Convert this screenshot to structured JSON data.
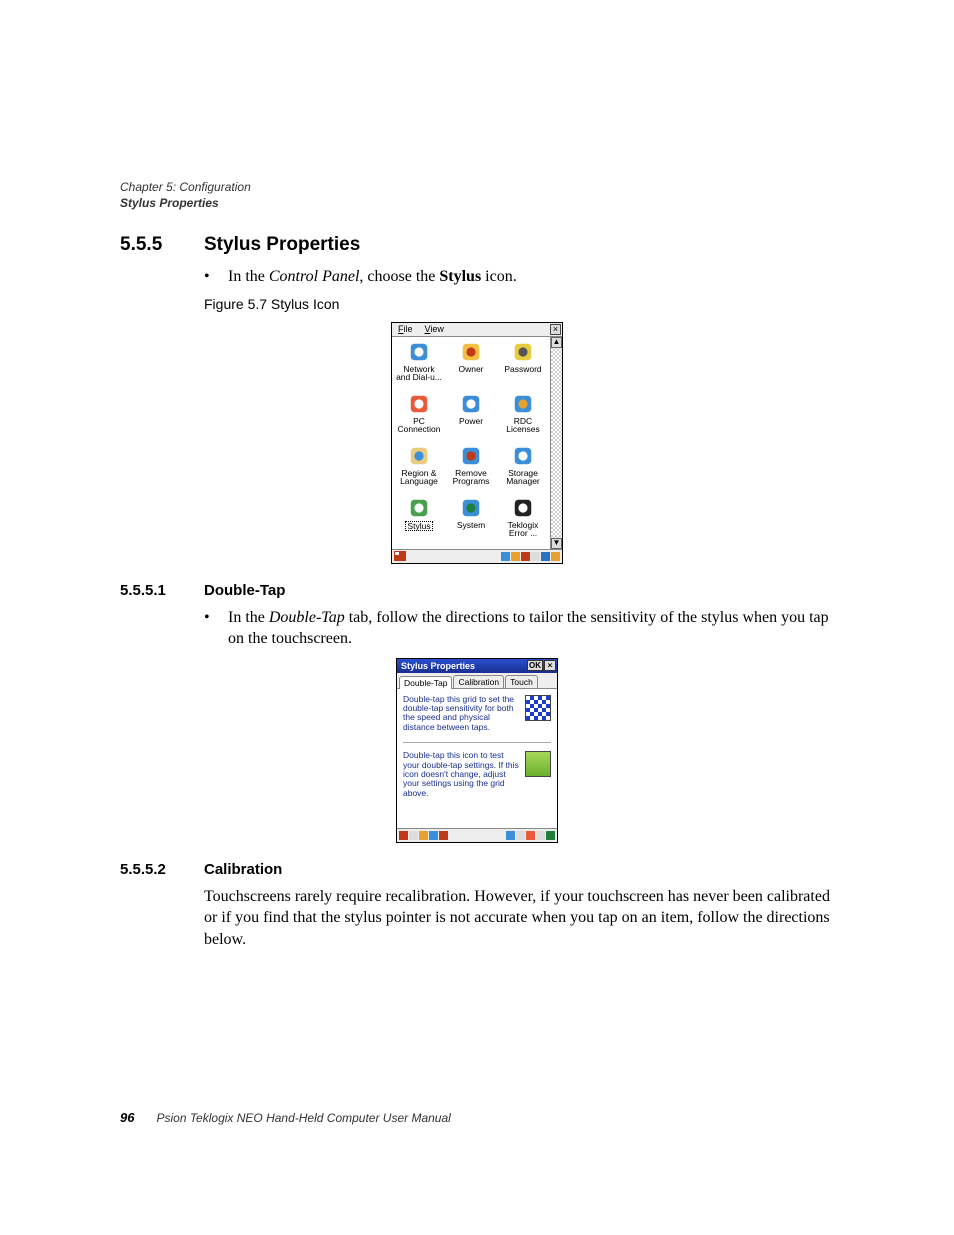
{
  "header": {
    "chapter": "Chapter 5: Configuration",
    "section": "Stylus Properties"
  },
  "section_5_5_5": {
    "num": "5.5.5",
    "title": "Stylus Properties",
    "bullet_prefix": "In the ",
    "bullet_em": "Control Panel",
    "bullet_mid": ", choose the ",
    "bullet_strong": "Stylus",
    "bullet_suffix": " icon.",
    "figure_caption": "Figure 5.7  Stylus Icon"
  },
  "cp": {
    "menu_file": "File",
    "menu_view": "View",
    "close": "×",
    "scroll_up": "▲",
    "scroll_down": "▼",
    "items": [
      {
        "label": "Network\nand Dial-u...",
        "icon_bg": "#3a8fd8",
        "icon_fg": "#fff"
      },
      {
        "label": "Owner",
        "icon_bg": "#f4c040",
        "icon_fg": "#c03a1a"
      },
      {
        "label": "Password",
        "icon_bg": "#e8cc40",
        "icon_fg": "#555"
      },
      {
        "label": "PC\nConnection",
        "icon_bg": "#e85a3a",
        "icon_fg": "#fff"
      },
      {
        "label": "Power",
        "icon_bg": "#3a8fd8",
        "icon_fg": "#fff"
      },
      {
        "label": "RDC\nLicenses",
        "icon_bg": "#3a8fd8",
        "icon_fg": "#e8a030"
      },
      {
        "label": "Region & \nLanguage",
        "icon_bg": "#e8cc80",
        "icon_fg": "#3a8fd8"
      },
      {
        "label": "Remove\nPrograms",
        "icon_bg": "#3a8fd8",
        "icon_fg": "#c03a1a"
      },
      {
        "label": "Storage\nManager",
        "icon_bg": "#3a8fd8",
        "icon_fg": "#fff"
      },
      {
        "label": "Stylus",
        "icon_bg": "#4aa050",
        "icon_fg": "#fff",
        "selected": true
      },
      {
        "label": "System",
        "icon_bg": "#3a8fd8",
        "icon_fg": "#20803a"
      },
      {
        "label": "Teklogix\nError ...",
        "icon_bg": "#222",
        "icon_fg": "#fff"
      }
    ],
    "tray_colors": [
      "#3a8fd8",
      "#e8a030",
      "#c03a1a",
      "#ddd",
      "#2a70c0",
      "#e8a030"
    ]
  },
  "section_5_5_5_1": {
    "num": "5.5.5.1",
    "title": "Double-Tap",
    "bullet_prefix": "In the ",
    "bullet_em": "Double-Tap",
    "bullet_suffix": " tab, follow the directions to tailor the sensitivity of the stylus when you tap on the touchscreen."
  },
  "sp": {
    "title": "Stylus Properties",
    "ok": "OK",
    "close": "×",
    "tabs": [
      "Double-Tap",
      "Calibration",
      "Touch"
    ],
    "active_tab": 0,
    "block1": "Double-tap this grid to set the double-tap sensitivity for both the speed and physical distance between taps.",
    "block2": "Double-tap this icon to test your double-tap settings. If this icon doesn't change, adjust your settings using the grid above.",
    "taskbar_left_colors": [
      "#c03a1a",
      "#ddd",
      "#e8a030",
      "#3a8fd8",
      "#c03a1a"
    ],
    "taskbar_right_colors": [
      "#3a8fd8",
      "#ddd",
      "#e85a3a",
      "#ddd",
      "#20803a"
    ]
  },
  "section_5_5_5_2": {
    "num": "5.5.5.2",
    "title": "Calibration",
    "para": "Touchscreens rarely require recalibration. However, if your touchscreen has never been calibrated or if you find that the stylus pointer is not accurate when you tap on an item, follow the directions below."
  },
  "footer": {
    "page": "96",
    "text": "Psion Teklogix NEO Hand-Held Computer User Manual"
  }
}
